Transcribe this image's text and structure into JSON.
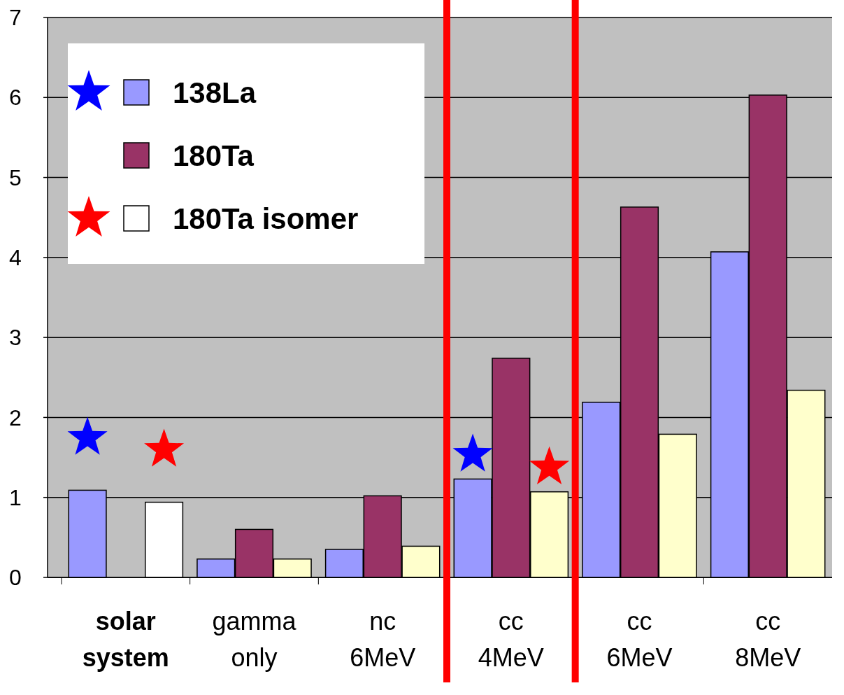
{
  "chart_data": {
    "type": "bar",
    "categories": [
      "solar system",
      "gamma only",
      "nc 6MeV",
      "cc 4MeV",
      "cc 6MeV",
      "cc 8MeV"
    ],
    "series": [
      {
        "name": "138La",
        "color": "#9999ff",
        "values": [
          1.09,
          0.23,
          0.35,
          1.23,
          2.19,
          4.07
        ]
      },
      {
        "name": "180Ta",
        "color": "#993366",
        "values": [
          null,
          0.6,
          1.02,
          2.74,
          4.63,
          6.03
        ]
      },
      {
        "name": "180Ta isomer",
        "color": "#ffffff",
        "colors": [
          "#ffffff",
          "#ffffcc",
          "#ffffcc",
          "#ffffcc",
          "#ffffcc",
          "#ffffcc"
        ],
        "values": [
          0.94,
          0.23,
          0.39,
          1.07,
          1.79,
          2.34
        ]
      }
    ],
    "ylim": [
      0,
      7
    ],
    "yticks": [
      0,
      1,
      2,
      3,
      4,
      5,
      6,
      7
    ],
    "grid": "y",
    "legend": "top left"
  }
}
